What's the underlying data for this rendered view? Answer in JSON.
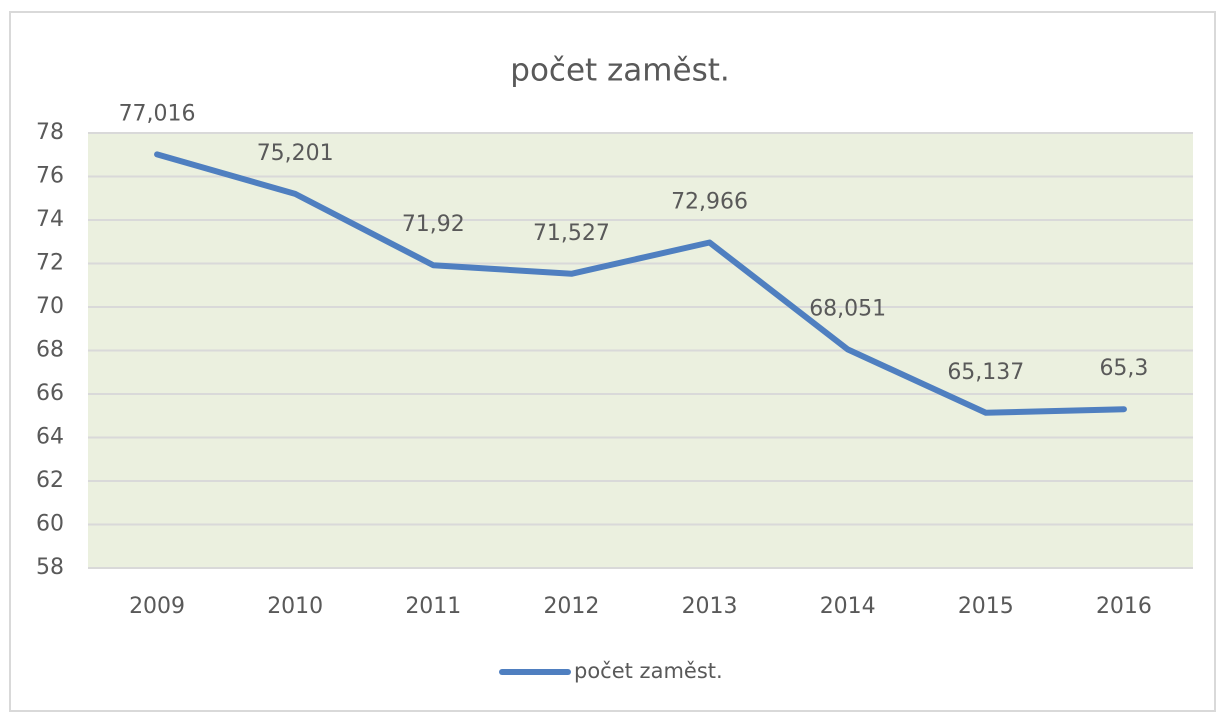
{
  "chart_data": {
    "type": "line",
    "title": "počet zaměst.",
    "categories": [
      "2009",
      "2010",
      "2011",
      "2012",
      "2013",
      "2014",
      "2015",
      "2016"
    ],
    "series": [
      {
        "name": "počet zaměst.",
        "color": "#4f7fc0",
        "values": [
          77.016,
          75.201,
          71.92,
          71.527,
          72.966,
          68.051,
          65.137,
          65.3
        ],
        "value_labels": [
          "77,016",
          "75,201",
          "71,92",
          "71,527",
          "72,966",
          "68,051",
          "65,137",
          "65,3"
        ]
      }
    ],
    "ylim": [
      58,
      78
    ],
    "yticks": [
      58,
      60,
      62,
      64,
      66,
      68,
      70,
      72,
      74,
      76,
      78
    ],
    "grid": true,
    "legend": "bottom",
    "plot_background": "#ebf0df"
  }
}
